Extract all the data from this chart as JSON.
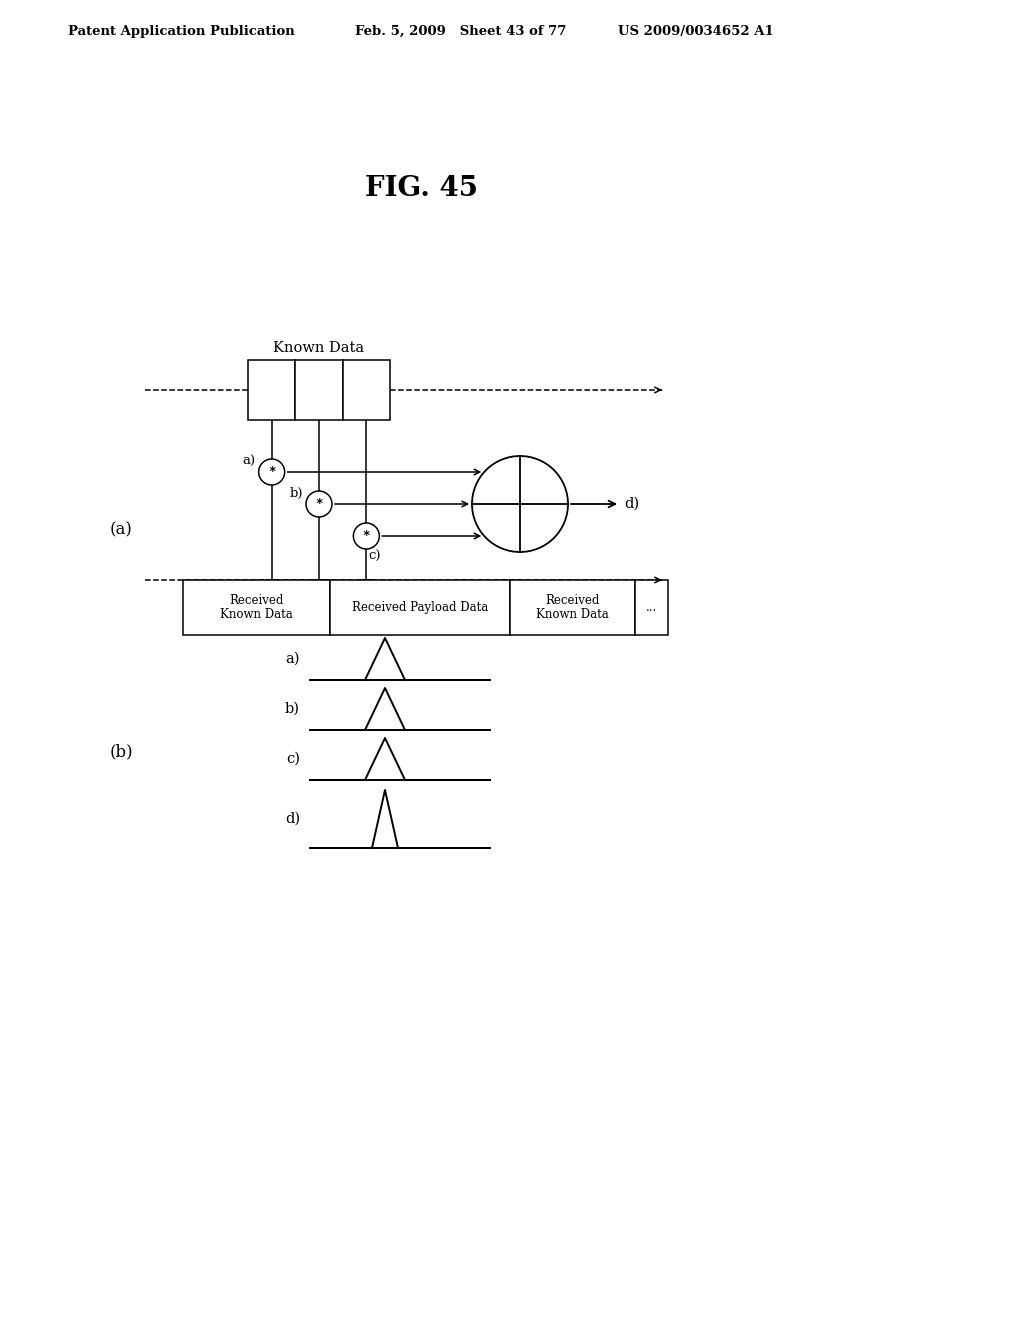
{
  "bg_color": "#ffffff",
  "header_left": "Patent Application Publication",
  "header_mid": "Feb. 5, 2009   Sheet 43 of 77",
  "header_right": "US 2009/0034652 A1",
  "fig_title": "FIG. 45",
  "label_a": "(a)",
  "label_b": "(b)",
  "known_data_label": "Known Data",
  "correlator_label": "d)",
  "signal_labels": [
    "a)",
    "b)",
    "c)",
    "d)"
  ],
  "box_texts": [
    "Received\nKnown Data",
    "Received Payload Data",
    "Received\nKnown Data",
    "..."
  ]
}
